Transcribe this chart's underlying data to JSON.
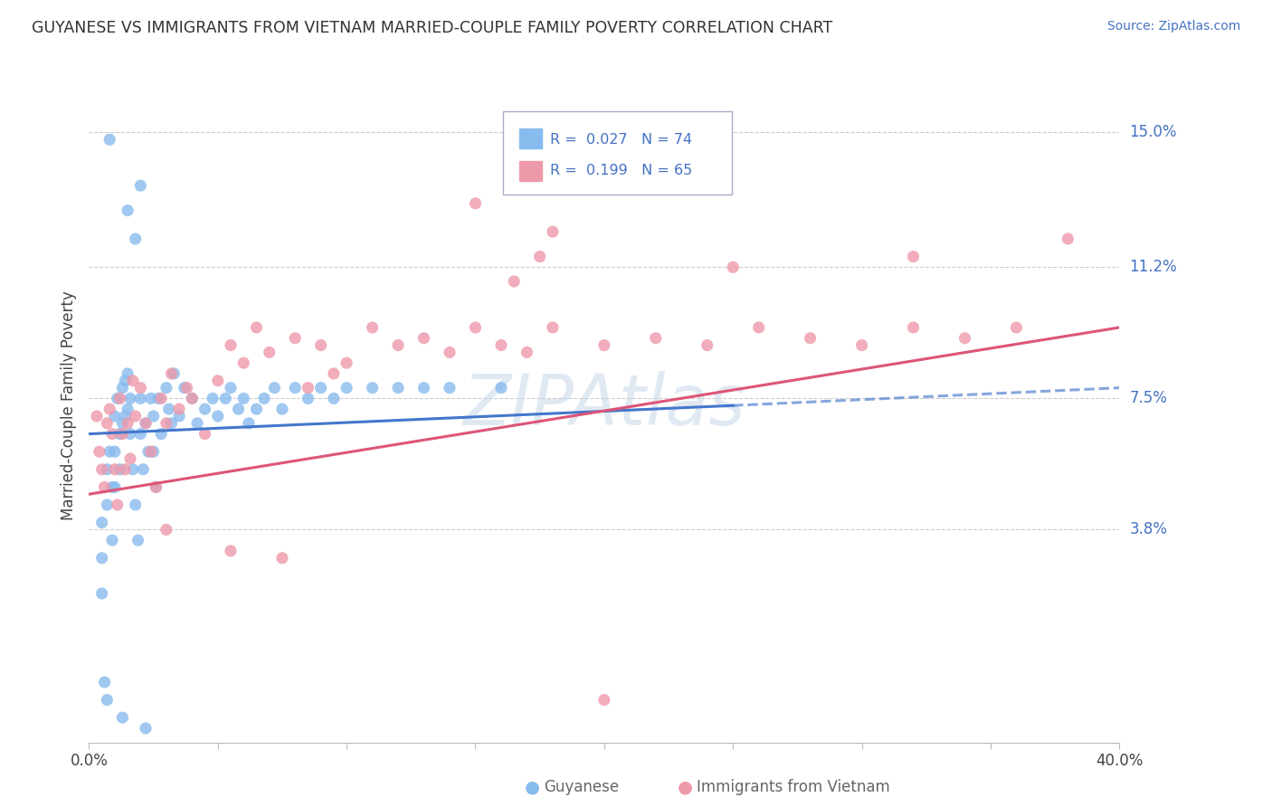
{
  "title": "GUYANESE VS IMMIGRANTS FROM VIETNAM MARRIED-COUPLE FAMILY POVERTY CORRELATION CHART",
  "source": "Source: ZipAtlas.com",
  "ylabel": "Married-Couple Family Poverty",
  "xlabel": "",
  "xlim": [
    0.0,
    0.4
  ],
  "ylim": [
    -0.022,
    0.168
  ],
  "xticks": [
    0.0,
    0.05,
    0.1,
    0.15,
    0.2,
    0.25,
    0.3,
    0.35,
    0.4
  ],
  "xticklabels": [
    "0.0%",
    "",
    "",
    "",
    "",
    "",
    "",
    "",
    "40.0%"
  ],
  "ytick_positions": [
    0.038,
    0.075,
    0.112,
    0.15
  ],
  "ytick_labels": [
    "3.8%",
    "7.5%",
    "11.2%",
    "15.0%"
  ],
  "gridlines": [
    0.038,
    0.075,
    0.112,
    0.15
  ],
  "series1_color": "#88BBEE",
  "series2_color": "#EE99AA",
  "series1_label": "Guyanese",
  "series2_label": "Immigrants from Vietnam",
  "series1_R": "0.027",
  "series1_N": "74",
  "series2_R": "0.199",
  "series2_N": "65",
  "trend1_color": "#4477CC",
  "trend2_color": "#DD5577",
  "watermark": "ZIPAtlas",
  "background_color": "#ffffff",
  "series1_x": [
    0.005,
    0.005,
    0.005,
    0.007,
    0.007,
    0.008,
    0.009,
    0.009,
    0.01,
    0.01,
    0.01,
    0.011,
    0.012,
    0.012,
    0.013,
    0.013,
    0.014,
    0.014,
    0.015,
    0.015,
    0.016,
    0.016,
    0.017,
    0.018,
    0.019,
    0.02,
    0.02,
    0.021,
    0.022,
    0.023,
    0.024,
    0.025,
    0.025,
    0.026,
    0.027,
    0.028,
    0.03,
    0.031,
    0.032,
    0.033,
    0.035,
    0.037,
    0.04,
    0.042,
    0.045,
    0.048,
    0.05,
    0.053,
    0.055,
    0.058,
    0.06,
    0.062,
    0.065,
    0.068,
    0.072,
    0.075,
    0.08,
    0.085,
    0.09,
    0.095,
    0.1,
    0.11,
    0.12,
    0.13,
    0.14,
    0.16,
    0.018,
    0.015,
    0.02,
    0.008,
    0.006,
    0.007,
    0.013,
    0.022
  ],
  "series1_y": [
    0.04,
    0.03,
    0.02,
    0.055,
    0.045,
    0.06,
    0.05,
    0.035,
    0.07,
    0.06,
    0.05,
    0.075,
    0.065,
    0.055,
    0.078,
    0.068,
    0.08,
    0.07,
    0.082,
    0.072,
    0.075,
    0.065,
    0.055,
    0.045,
    0.035,
    0.075,
    0.065,
    0.055,
    0.068,
    0.06,
    0.075,
    0.07,
    0.06,
    0.05,
    0.075,
    0.065,
    0.078,
    0.072,
    0.068,
    0.082,
    0.07,
    0.078,
    0.075,
    0.068,
    0.072,
    0.075,
    0.07,
    0.075,
    0.078,
    0.072,
    0.075,
    0.068,
    0.072,
    0.075,
    0.078,
    0.072,
    0.078,
    0.075,
    0.078,
    0.075,
    0.078,
    0.078,
    0.078,
    0.078,
    0.078,
    0.078,
    0.12,
    0.128,
    0.135,
    0.148,
    -0.005,
    -0.01,
    -0.015,
    -0.018
  ],
  "series2_x": [
    0.003,
    0.004,
    0.005,
    0.006,
    0.007,
    0.008,
    0.009,
    0.01,
    0.011,
    0.012,
    0.013,
    0.014,
    0.015,
    0.016,
    0.017,
    0.018,
    0.02,
    0.022,
    0.024,
    0.026,
    0.028,
    0.03,
    0.032,
    0.035,
    0.038,
    0.04,
    0.045,
    0.05,
    0.055,
    0.06,
    0.065,
    0.07,
    0.08,
    0.09,
    0.1,
    0.11,
    0.12,
    0.13,
    0.14,
    0.15,
    0.16,
    0.17,
    0.18,
    0.2,
    0.22,
    0.24,
    0.26,
    0.28,
    0.3,
    0.32,
    0.34,
    0.36,
    0.15,
    0.18,
    0.32,
    0.25,
    0.38,
    0.085,
    0.095,
    0.165,
    0.175,
    0.03,
    0.055,
    0.075,
    0.2
  ],
  "series2_y": [
    0.07,
    0.06,
    0.055,
    0.05,
    0.068,
    0.072,
    0.065,
    0.055,
    0.045,
    0.075,
    0.065,
    0.055,
    0.068,
    0.058,
    0.08,
    0.07,
    0.078,
    0.068,
    0.06,
    0.05,
    0.075,
    0.068,
    0.082,
    0.072,
    0.078,
    0.075,
    0.065,
    0.08,
    0.09,
    0.085,
    0.095,
    0.088,
    0.092,
    0.09,
    0.085,
    0.095,
    0.09,
    0.092,
    0.088,
    0.095,
    0.09,
    0.088,
    0.095,
    0.09,
    0.092,
    0.09,
    0.095,
    0.092,
    0.09,
    0.095,
    0.092,
    0.095,
    0.13,
    0.122,
    0.115,
    0.112,
    0.12,
    0.078,
    0.082,
    0.108,
    0.115,
    0.038,
    0.032,
    0.03,
    -0.01
  ]
}
